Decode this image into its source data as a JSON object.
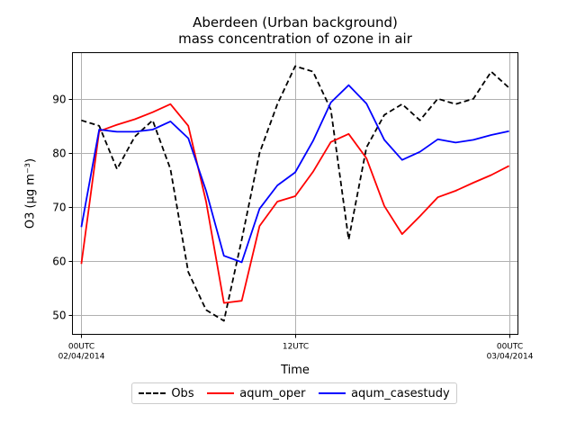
{
  "chart_data": {
    "type": "line",
    "title": "Aberdeen (Urban background)",
    "subtitle": "mass concentration of ozone in air",
    "xlabel": "Time",
    "ylabel": "O3 (μg m⁻³)",
    "ylim": [
      46.5,
      98.5
    ],
    "xlim": [
      -0.5,
      24.5
    ],
    "yticks": [
      50,
      60,
      70,
      80,
      90
    ],
    "xticks": [
      {
        "x": 0,
        "line1": "00UTC",
        "line2": "02/04/2014"
      },
      {
        "x": 12,
        "line1": "12UTC",
        "line2": ""
      },
      {
        "x": 24,
        "line1": "00UTC",
        "line2": "03/04/2014"
      }
    ],
    "grid": true,
    "legend_position": "bottom-center",
    "series": [
      {
        "name": "Obs",
        "color": "#000000",
        "dashed": true,
        "x": [
          0,
          1,
          2,
          3,
          4,
          5,
          6,
          7,
          8,
          9,
          10,
          11,
          12,
          13,
          14,
          15,
          16,
          17,
          18,
          19,
          20,
          21,
          22,
          23,
          24
        ],
        "values": [
          86,
          85,
          77,
          83,
          86,
          77,
          58,
          51,
          49,
          64,
          80,
          89,
          96,
          95,
          88,
          64,
          81,
          87,
          89,
          86,
          90,
          89,
          90,
          95,
          92
        ]
      },
      {
        "name": "aqum_oper",
        "color": "#ff0000",
        "dashed": false,
        "x": [
          0,
          1,
          2,
          3,
          4,
          5,
          6,
          7,
          8,
          9,
          10,
          11,
          12,
          13,
          14,
          15,
          16,
          17,
          18,
          19,
          20,
          21,
          22,
          23,
          24
        ],
        "values": [
          59.5,
          84,
          85.2,
          86.2,
          87.5,
          89,
          85,
          71,
          52.3,
          52.7,
          66.5,
          71,
          72,
          76.5,
          82,
          83.5,
          79,
          70.2,
          65,
          68.3,
          71.8,
          73,
          74.5,
          75.9,
          77.6
        ]
      },
      {
        "name": "aqum_casestudy",
        "color": "#0000ff",
        "dashed": false,
        "x": [
          0,
          1,
          2,
          3,
          4,
          5,
          6,
          7,
          8,
          9,
          10,
          11,
          12,
          13,
          14,
          15,
          16,
          17,
          18,
          19,
          20,
          21,
          22,
          23,
          24
        ],
        "values": [
          66.3,
          84.3,
          83.9,
          83.9,
          84.3,
          85.8,
          82.7,
          73,
          61,
          59.8,
          69.7,
          74,
          76.4,
          82.2,
          89.3,
          92.5,
          89.1,
          82.4,
          78.7,
          80.2,
          82.5,
          81.9,
          82.4,
          83.3,
          84
        ]
      }
    ]
  }
}
